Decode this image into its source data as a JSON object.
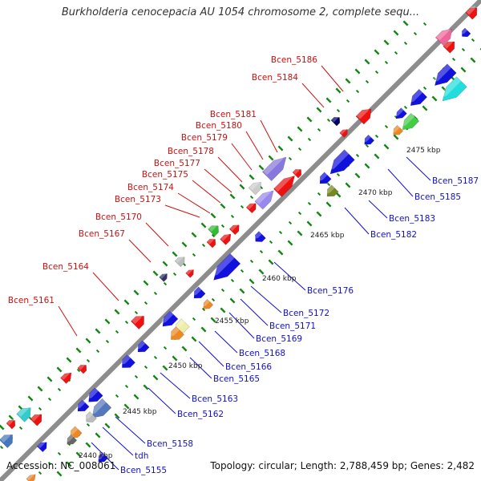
{
  "title": "Burkholderia cenocepacia AU 1054 chromosome 2, complete sequ...",
  "footer": {
    "accession": "Accession: NC_008061",
    "topology": "Topology: circular; Length: 2,788,459 bp; Genes: 2,482"
  },
  "colors": {
    "backbone": "#8c8c8c",
    "forward_gene": "#ee1111",
    "reverse_gene": "#1111dd",
    "forward_label": "#cc1111",
    "reverse_label": "#1111cc",
    "tick_major": "#118811",
    "tick_minor": "#118811"
  },
  "scale_labels": [
    "2440 kbp",
    "2445 kbp",
    "2450 kbp",
    "2455 kbp",
    "2460 kbp",
    "2465 kbp",
    "2470 kbp",
    "2475 kbp"
  ],
  "forward_labels": [
    "Bcen_5186",
    "Bcen_5184",
    "Bcen_5181",
    "Bcen_5180",
    "Bcen_5179",
    "Bcen_5178",
    "Bcen_5177",
    "Bcen_5175",
    "Bcen_5174",
    "Bcen_5173",
    "Bcen_5170",
    "Bcen_5167",
    "Bcen_5164",
    "Bcen_5161"
  ],
  "reverse_labels": [
    "Bcen_5187",
    "Bcen_5185",
    "Bcen_5183",
    "Bcen_5182",
    "Bcen_5176",
    "Bcen_5172",
    "Bcen_5171",
    "Bcen_5169",
    "Bcen_5168",
    "Bcen_5166",
    "Bcen_5165",
    "Bcen_5163",
    "Bcen_5162",
    "Bcen_5158",
    "tdh",
    "Bcen_5155"
  ]
}
